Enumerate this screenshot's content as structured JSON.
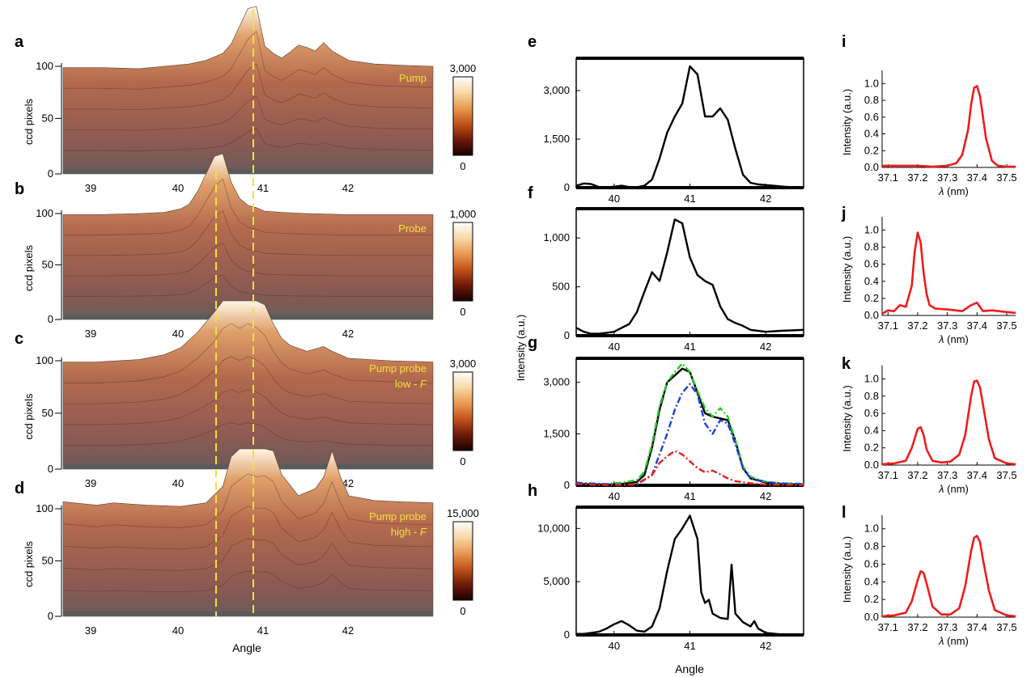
{
  "colors": {
    "annot": "#f2e23a",
    "line_black": "#000000",
    "line_red": "#ee1c1c",
    "green": "#22cc22",
    "blue": "#1f3fd6",
    "surface": "#a86e58",
    "colorbar": [
      "#1a0000",
      "#6e1a08",
      "#c2521c",
      "#e89a52",
      "#f7d9a6",
      "#ffffff"
    ]
  },
  "common": {
    "ccd_ylabel": "ccd pixels",
    "angle_label": "Angle",
    "intensity_label": "Intensity (a.u.)",
    "intensity_au_label": "Intensity (a.u.)",
    "lambda_label": "λ (nm)"
  },
  "chart_data": [
    {
      "panel": "a",
      "type": "area",
      "annotation": [
        "Pump"
      ],
      "colorbar": {
        "max": "3,000",
        "min": "0"
      },
      "yticks": [
        "100",
        "50",
        "0"
      ],
      "xticks": [
        "39",
        "40",
        "41",
        "42"
      ],
      "x": [
        38.6,
        39.0,
        39.5,
        39.8,
        40.1,
        40.3,
        40.5,
        40.6,
        40.7,
        40.8,
        40.9,
        41.0,
        41.1,
        41.2,
        41.3,
        41.4,
        41.5,
        41.6,
        41.7,
        41.8,
        42.0,
        42.3,
        42.6,
        43.0
      ],
      "y": [
        90,
        90,
        89,
        91,
        93,
        96,
        102,
        110,
        125,
        140,
        148,
        108,
        102,
        98,
        103,
        109,
        107,
        104,
        111,
        104,
        96,
        93,
        92,
        91
      ],
      "ylim": [
        0,
        150
      ]
    },
    {
      "panel": "b",
      "type": "area",
      "annotation": [
        "Probe"
      ],
      "colorbar": {
        "max": "1,000",
        "min": "0"
      },
      "yticks": [
        "100",
        "50",
        "0"
      ],
      "xticks": [
        "39",
        "40",
        "41",
        "42"
      ],
      "x": [
        38.6,
        39.0,
        39.5,
        39.8,
        40.0,
        40.1,
        40.2,
        40.3,
        40.4,
        40.5,
        40.6,
        40.7,
        40.8,
        40.9,
        41.0,
        41.2,
        41.5,
        42.0,
        42.5,
        43.0
      ],
      "y": [
        90,
        90,
        91,
        92,
        95,
        99,
        110,
        125,
        140,
        148,
        118,
        104,
        98,
        96,
        93,
        92,
        91,
        90,
        90,
        90
      ],
      "ylim": [
        0,
        150
      ]
    },
    {
      "panel": "c",
      "type": "area",
      "annotation": [
        "Pump probe",
        "low - F"
      ],
      "colorbar": {
        "max": "3,000",
        "min": "0"
      },
      "yticks": [
        "100",
        "50",
        "0"
      ],
      "xticks": [
        "39",
        "40",
        "41",
        "42"
      ],
      "x": [
        38.6,
        39.0,
        39.5,
        39.8,
        40.0,
        40.2,
        40.4,
        40.5,
        40.6,
        40.7,
        40.8,
        40.9,
        41.0,
        41.1,
        41.2,
        41.3,
        41.5,
        41.7,
        41.8,
        42.0,
        42.5,
        43.0
      ],
      "y": [
        90,
        90,
        92,
        96,
        102,
        115,
        132,
        145,
        150,
        145,
        150,
        146,
        138,
        122,
        110,
        104,
        99,
        103,
        99,
        93,
        91,
        90
      ],
      "ylim": [
        0,
        150
      ]
    },
    {
      "panel": "d",
      "type": "area",
      "annotation": [
        "Pump probe",
        "high - F"
      ],
      "colorbar": {
        "max": "15,000",
        "min": "0"
      },
      "yticks": [
        "100",
        "50",
        "0"
      ],
      "xticks": [
        "39",
        "40",
        "41",
        "42"
      ],
      "x": [
        38.6,
        39.0,
        39.2,
        39.4,
        39.6,
        40.0,
        40.3,
        40.5,
        40.6,
        40.7,
        40.8,
        40.9,
        41.0,
        41.1,
        41.2,
        41.4,
        41.6,
        41.7,
        41.8,
        41.9,
        42.0,
        42.3,
        42.6,
        43.0
      ],
      "y": [
        97,
        94,
        96,
        95,
        94,
        93,
        96,
        110,
        135,
        142,
        148,
        145,
        146,
        140,
        120,
        102,
        108,
        118,
        140,
        118,
        102,
        98,
        97,
        96
      ],
      "ylim": [
        0,
        150
      ]
    },
    {
      "panel": "e",
      "type": "line",
      "xlim": [
        39.5,
        42.5
      ],
      "ylim": [
        0,
        4000
      ],
      "xticks": [
        "40",
        "41",
        "42"
      ],
      "yticks": [
        "3,000",
        "1,500",
        "0"
      ],
      "series": [
        {
          "color": "black",
          "x": [
            39.5,
            39.6,
            39.7,
            39.8,
            39.9,
            40.0,
            40.1,
            40.2,
            40.3,
            40.4,
            40.5,
            40.6,
            40.7,
            40.8,
            40.9,
            41.0,
            41.1,
            41.2,
            41.3,
            41.4,
            41.5,
            41.6,
            41.7,
            41.8,
            41.9,
            42.0,
            42.1,
            42.2,
            42.3,
            42.4,
            42.5
          ],
          "y": [
            60,
            130,
            110,
            20,
            10,
            30,
            60,
            20,
            10,
            60,
            250,
            900,
            1700,
            2200,
            2600,
            3750,
            3500,
            2200,
            2200,
            2450,
            2100,
            1200,
            400,
            150,
            100,
            80,
            60,
            40,
            20,
            10,
            0
          ]
        }
      ]
    },
    {
      "panel": "f",
      "type": "line",
      "xlim": [
        39.5,
        42.5
      ],
      "ylim": [
        0,
        1300
      ],
      "xticks": [
        "40",
        "41",
        "42"
      ],
      "yticks": [
        "1,000",
        "500",
        "0"
      ],
      "series": [
        {
          "color": "black",
          "x": [
            39.5,
            39.6,
            39.7,
            39.8,
            39.9,
            40.0,
            40.1,
            40.2,
            40.3,
            40.4,
            40.5,
            40.6,
            40.7,
            40.8,
            40.9,
            41.0,
            41.1,
            41.2,
            41.3,
            41.4,
            41.5,
            41.6,
            41.7,
            41.8,
            42.0,
            42.2,
            42.5
          ],
          "y": [
            80,
            40,
            20,
            20,
            30,
            40,
            80,
            120,
            240,
            450,
            650,
            560,
            850,
            1190,
            1150,
            800,
            620,
            560,
            520,
            300,
            170,
            130,
            100,
            60,
            40,
            50,
            60
          ]
        }
      ]
    },
    {
      "panel": "g",
      "type": "line",
      "xlim": [
        39.5,
        42.5
      ],
      "ylim": [
        0,
        3700
      ],
      "xticks": [
        "40",
        "41",
        "42"
      ],
      "yticks": [
        "3,000",
        "1,500",
        "0"
      ],
      "series": [
        {
          "color": "black",
          "x": [
            39.5,
            39.7,
            39.9,
            40.1,
            40.3,
            40.4,
            40.5,
            40.6,
            40.7,
            40.8,
            40.9,
            41.0,
            41.1,
            41.2,
            41.3,
            41.4,
            41.5,
            41.6,
            41.7,
            41.8,
            42.0,
            42.2,
            42.5
          ],
          "y": [
            40,
            30,
            20,
            40,
            100,
            300,
            1100,
            2200,
            3000,
            3200,
            3400,
            3300,
            2700,
            2100,
            2000,
            1950,
            1900,
            1300,
            500,
            200,
            80,
            40,
            20
          ]
        },
        {
          "color": "green",
          "x": [
            39.5,
            39.7,
            39.9,
            40.1,
            40.3,
            40.4,
            40.5,
            40.6,
            40.7,
            40.8,
            40.9,
            41.0,
            41.1,
            41.2,
            41.3,
            41.4,
            41.5,
            41.6,
            41.7,
            41.8,
            42.0,
            42.2,
            42.5
          ],
          "y": [
            50,
            60,
            40,
            80,
            150,
            400,
            1200,
            2300,
            3000,
            3300,
            3550,
            3300,
            2750,
            2250,
            2000,
            2250,
            2000,
            1300,
            550,
            250,
            100,
            60,
            40
          ]
        },
        {
          "color": "blue",
          "x": [
            39.5,
            39.7,
            39.9,
            40.1,
            40.3,
            40.5,
            40.6,
            40.7,
            40.8,
            40.9,
            41.0,
            41.1,
            41.2,
            41.3,
            41.4,
            41.5,
            41.6,
            41.7,
            41.8,
            42.0,
            42.2,
            42.5
          ],
          "y": [
            80,
            50,
            30,
            20,
            20,
            300,
            900,
            1500,
            2200,
            2700,
            2950,
            2650,
            1800,
            1500,
            1900,
            1800,
            1200,
            500,
            200,
            100,
            60,
            40
          ]
        },
        {
          "color": "red",
          "x": [
            39.5,
            39.7,
            39.9,
            40.1,
            40.3,
            40.5,
            40.6,
            40.7,
            40.8,
            40.9,
            41.0,
            41.1,
            41.2,
            41.3,
            41.4,
            41.5,
            41.6,
            41.8,
            42.0,
            42.5
          ],
          "y": [
            40,
            20,
            10,
            10,
            40,
            300,
            650,
            850,
            1000,
            900,
            700,
            500,
            380,
            430,
            320,
            200,
            120,
            60,
            20,
            10
          ]
        }
      ]
    },
    {
      "panel": "h",
      "type": "line",
      "xlim": [
        39.5,
        42.5
      ],
      "ylim": [
        0,
        12000
      ],
      "xticks": [
        "40",
        "41",
        "42"
      ],
      "yticks": [
        "10,000",
        "5,000",
        "0"
      ],
      "xlabel": "Angle",
      "series": [
        {
          "color": "black",
          "x": [
            39.5,
            39.6,
            39.7,
            39.8,
            39.9,
            40.0,
            40.1,
            40.2,
            40.3,
            40.4,
            40.5,
            40.6,
            40.7,
            40.8,
            40.9,
            41.0,
            41.1,
            41.15,
            41.2,
            41.25,
            41.3,
            41.4,
            41.5,
            41.55,
            41.6,
            41.7,
            41.8,
            41.85,
            41.9,
            42.0,
            42.2,
            42.5
          ],
          "y": [
            100,
            100,
            200,
            300,
            600,
            1000,
            1300,
            900,
            400,
            300,
            800,
            2500,
            6000,
            9000,
            10000,
            11200,
            9000,
            4000,
            3000,
            3300,
            2000,
            1600,
            1500,
            6600,
            2000,
            1200,
            800,
            1300,
            600,
            200,
            50,
            20
          ]
        }
      ]
    },
    {
      "panel": "i",
      "type": "line",
      "xlim": [
        37.08,
        37.53
      ],
      "ylim": [
        0,
        1.08
      ],
      "xticks": [
        "37.1",
        "37.2",
        "37.3",
        "37.4",
        "37.5"
      ],
      "yticks": [
        "1.0",
        "0.8",
        "0.6",
        "0.4",
        "0.2",
        "0.0"
      ],
      "series": [
        {
          "color": "red",
          "x": [
            37.08,
            37.1,
            37.15,
            37.2,
            37.25,
            37.3,
            37.33,
            37.35,
            37.37,
            37.38,
            37.39,
            37.4,
            37.41,
            37.42,
            37.43,
            37.45,
            37.47,
            37.5,
            37.53
          ],
          "y": [
            0.02,
            0.02,
            0.02,
            0.02,
            0.01,
            0.02,
            0.05,
            0.15,
            0.45,
            0.75,
            0.95,
            0.97,
            0.85,
            0.6,
            0.35,
            0.08,
            0.02,
            0.01,
            0.01
          ]
        }
      ]
    },
    {
      "panel": "j",
      "type": "line",
      "xlim": [
        37.08,
        37.53
      ],
      "ylim": [
        0,
        1.08
      ],
      "xticks": [
        "37.1",
        "37.2",
        "37.3",
        "37.4",
        "37.5"
      ],
      "yticks": [
        "1.0",
        "0.8",
        "0.6",
        "0.4",
        "0.2",
        "0.0"
      ],
      "series": [
        {
          "color": "red",
          "x": [
            37.08,
            37.1,
            37.12,
            37.14,
            37.16,
            37.18,
            37.19,
            37.2,
            37.21,
            37.22,
            37.23,
            37.24,
            37.26,
            37.3,
            37.35,
            37.38,
            37.4,
            37.42,
            37.45,
            37.5,
            37.53
          ],
          "y": [
            0.02,
            0.06,
            0.05,
            0.12,
            0.1,
            0.35,
            0.75,
            0.97,
            0.85,
            0.5,
            0.25,
            0.12,
            0.08,
            0.07,
            0.05,
            0.12,
            0.15,
            0.05,
            0.06,
            0.04,
            0.03
          ]
        }
      ]
    },
    {
      "panel": "k",
      "type": "line",
      "xlim": [
        37.08,
        37.53
      ],
      "ylim": [
        0,
        1.08
      ],
      "xticks": [
        "37.1",
        "37.2",
        "37.3",
        "37.4",
        "37.5"
      ],
      "yticks": [
        "1.0",
        "0.8",
        "0.6",
        "0.4",
        "0.2",
        "0.0"
      ],
      "series": [
        {
          "color": "red",
          "x": [
            37.08,
            37.12,
            37.16,
            37.18,
            37.2,
            37.21,
            37.22,
            37.23,
            37.25,
            37.28,
            37.31,
            37.34,
            37.36,
            37.38,
            37.39,
            37.4,
            37.41,
            37.42,
            37.44,
            37.46,
            37.5,
            37.53
          ],
          "y": [
            0.01,
            0.02,
            0.05,
            0.2,
            0.42,
            0.44,
            0.35,
            0.18,
            0.05,
            0.03,
            0.04,
            0.12,
            0.35,
            0.8,
            0.97,
            0.98,
            0.9,
            0.7,
            0.3,
            0.08,
            0.02,
            0.01
          ]
        }
      ]
    },
    {
      "panel": "l",
      "type": "line",
      "xlim": [
        37.08,
        37.53
      ],
      "ylim": [
        0,
        1.08
      ],
      "xticks": [
        "37.1",
        "37.2",
        "37.3",
        "37.4",
        "37.5"
      ],
      "yticks": [
        "1.0",
        "0.8",
        "0.6",
        "0.4",
        "0.2",
        "0.0"
      ],
      "series": [
        {
          "color": "red",
          "x": [
            37.08,
            37.12,
            37.16,
            37.18,
            37.2,
            37.21,
            37.22,
            37.23,
            37.25,
            37.28,
            37.31,
            37.34,
            37.36,
            37.38,
            37.39,
            37.4,
            37.41,
            37.42,
            37.44,
            37.46,
            37.5,
            37.53
          ],
          "y": [
            0.01,
            0.02,
            0.05,
            0.18,
            0.42,
            0.52,
            0.5,
            0.38,
            0.12,
            0.03,
            0.03,
            0.1,
            0.35,
            0.75,
            0.9,
            0.92,
            0.85,
            0.65,
            0.3,
            0.08,
            0.02,
            0.01
          ]
        }
      ]
    }
  ]
}
